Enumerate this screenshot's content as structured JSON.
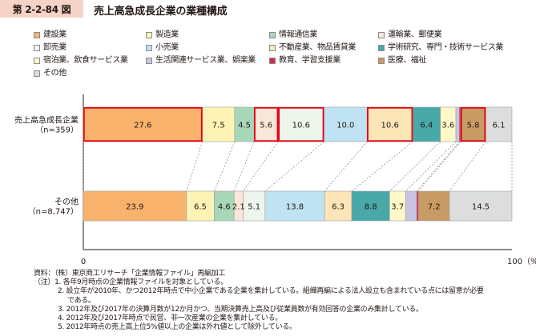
{
  "badge": "第 2-2-84 図",
  "title": "売上高急成長企業の業種構成",
  "chart_data": {
    "type": "bar",
    "orientation": "horizontal-stacked-100",
    "categories": [
      "売上高急成長企業\n（n=359）",
      "その他\n（n=8,747）"
    ],
    "category_lines": [
      [
        "売上高急成長企業",
        "（n=359）"
      ],
      [
        "その他",
        "（n=8,747）"
      ]
    ],
    "x_range": [
      0,
      100
    ],
    "x_ticks": [
      {
        "value": 0,
        "label": "0"
      },
      {
        "value": 100,
        "label": "100（%）"
      }
    ],
    "grid": false,
    "legend_position": "top",
    "series": [
      {
        "name": "建設業",
        "color": "#f8b26c",
        "values": [
          27.6,
          23.9
        ],
        "labels": [
          "27.6",
          "23.9"
        ]
      },
      {
        "name": "製造業",
        "color": "#fdf3b3",
        "values": [
          7.5,
          6.5
        ],
        "labels": [
          "7.5",
          "6.5"
        ]
      },
      {
        "name": "情報通信業",
        "color": "#a7d7b8",
        "values": [
          4.5,
          4.6
        ],
        "labels": [
          "4.5",
          "4.6"
        ]
      },
      {
        "name": "運輸業、郵便業",
        "color": "#fbe7d9",
        "values": [
          5.6,
          2.1
        ],
        "labels": [
          "5.6",
          "2.1"
        ]
      },
      {
        "name": "卸売業",
        "color": "#eef5ec",
        "values": [
          10.6,
          5.1
        ],
        "labels": [
          "10.6",
          "5.1"
        ]
      },
      {
        "name": "小売業",
        "color": "#bfe3f3",
        "values": [
          10.0,
          13.8
        ],
        "labels": [
          "10.0",
          "13.8"
        ]
      },
      {
        "name": "不動産業、物品賃貸業",
        "color": "#fde5b8",
        "values": [
          10.6,
          6.3
        ],
        "labels": [
          "10.6",
          "6.3"
        ]
      },
      {
        "name": "学術研究、専門・技術サービス業",
        "color": "#49a9a9",
        "values": [
          6.4,
          8.8
        ],
        "labels": [
          "6.4",
          "8.8"
        ]
      },
      {
        "name": "宿泊業、飲食サービス業",
        "color": "#fff9c9",
        "values": [
          3.6,
          3.7
        ],
        "labels": [
          "3.6",
          "3.7"
        ]
      },
      {
        "name": "生活関連サービス業、娯楽業",
        "color": "#c8c4e3",
        "values": [
          0.8,
          2.6
        ],
        "labels": [
          "",
          ""
        ]
      },
      {
        "name": "教育、学習支援業",
        "color": "#d92a4a",
        "values": [
          0.3,
          0.4
        ],
        "labels": [
          "",
          ""
        ]
      },
      {
        "name": "医療、福祉",
        "color": "#c89a64",
        "values": [
          5.8,
          7.2
        ],
        "labels": [
          "5.8",
          "7.2"
        ]
      },
      {
        "name": "その他",
        "color": "#dcdddd",
        "values": [
          6.1,
          14.5
        ],
        "labels": [
          "6.1",
          "14.5"
        ]
      }
    ],
    "highlighted_segments": [
      {
        "row": 0,
        "series": 0
      },
      {
        "row": 0,
        "series": 3
      },
      {
        "row": 0,
        "series": 4
      },
      {
        "row": 0,
        "series": 6
      },
      {
        "row": 0,
        "series": 11
      }
    ],
    "highlight_color": "#e60012"
  },
  "notes": {
    "source": "資料：（株）東京商工リサーチ「企業情報ファイル」再編加工",
    "items": [
      "（注）1. 各年9月時点の企業情報ファイルを対象としている。",
      "2. 設立年が2010年、かつ2012年時点で中小企業である企業を集計している。組織再編による法人設立も含まれている点には留意が必要",
      "である。",
      "3. 2012年及び2017年の決算月数が12か月かつ、当期決算売上高及び従業員数が有効回答の企業のみ集計している。",
      "4. 2012年及び2017年時点で民営、非一次産業の企業を集計している。",
      "5. 2012年時点の売上高上位5%値以上の企業は外れ値として除外している。"
    ]
  }
}
